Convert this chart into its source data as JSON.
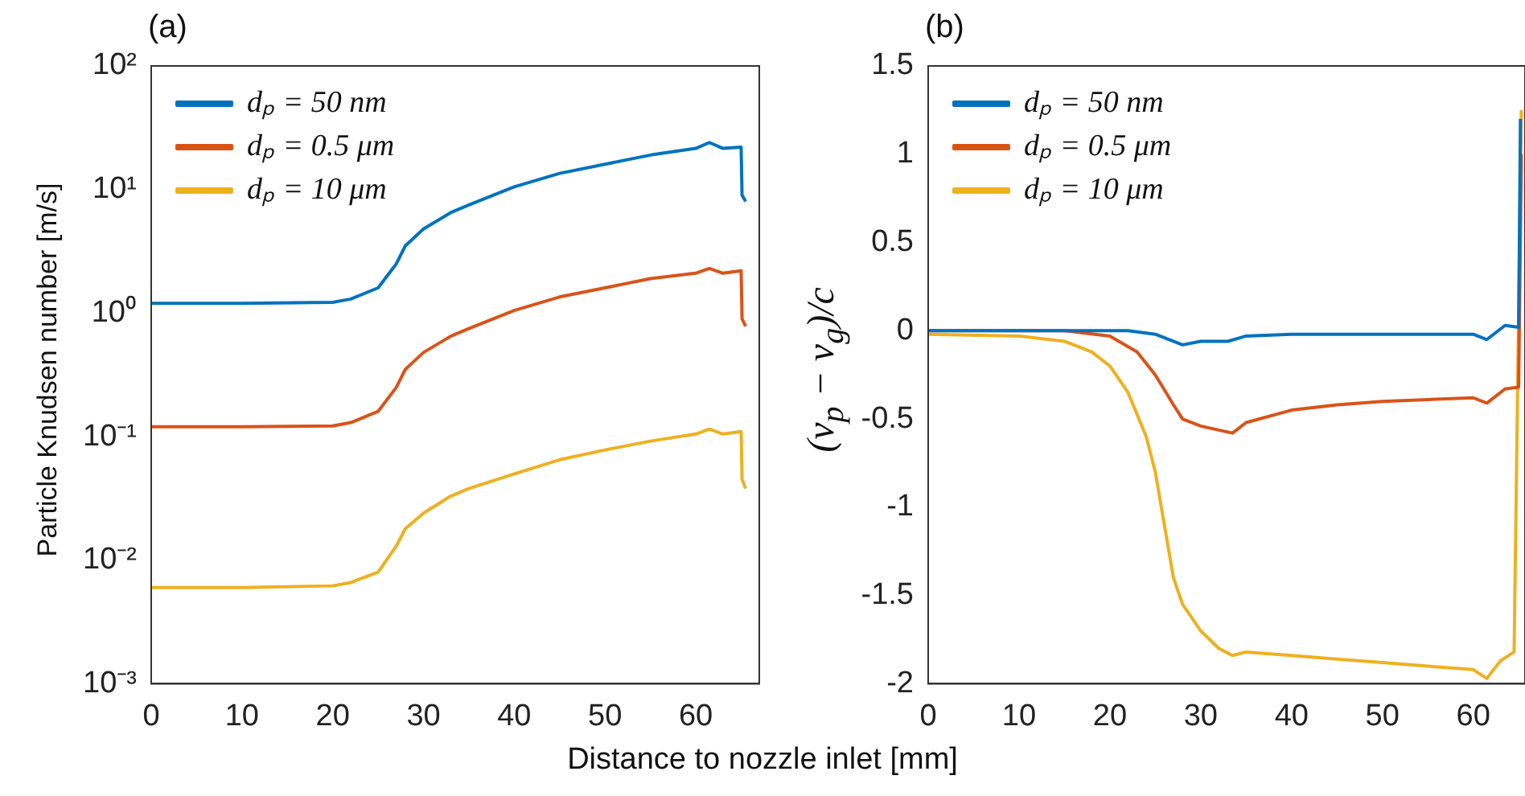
{
  "chart_data": [
    {
      "type": "line",
      "title": "(a)",
      "xlabel": "Distance to nozzle inlet [mm]",
      "ylabel": "Particle Knudsen number [m/s]",
      "log": "y",
      "legend": "top left",
      "grid": false,
      "xlim": [
        0,
        67
      ],
      "xticks": [
        0,
        10,
        20,
        30,
        40,
        50,
        60
      ],
      "ylim": [
        0.001,
        100
      ],
      "yticks": [
        {
          "value": 0.001,
          "label": "10⁻³"
        },
        {
          "value": 0.01,
          "label": "10⁻²"
        },
        {
          "value": 0.1,
          "label": "10⁻¹"
        },
        {
          "value": 1,
          "label": "10⁰"
        },
        {
          "value": 10,
          "label": "10¹"
        },
        {
          "value": 100,
          "label": "10²"
        }
      ],
      "x": [
        0,
        10,
        20,
        22,
        25,
        27,
        28,
        30,
        33,
        35,
        40,
        45,
        50,
        55,
        60,
        61.5,
        63,
        65,
        65.1,
        65.5
      ],
      "series": [
        {
          "name": "dₚ = 50 nm",
          "color": "#0072bd",
          "values": [
            1.2,
            1.2,
            1.22,
            1.3,
            1.6,
            2.5,
            3.5,
            4.8,
            6.5,
            7.5,
            10.5,
            13.5,
            16,
            19,
            21.5,
            24,
            21.5,
            22,
            9,
            8
          ]
        },
        {
          "name": "dₚ = 0.5 μm",
          "color": "#d95319",
          "values": [
            0.12,
            0.12,
            0.122,
            0.13,
            0.16,
            0.25,
            0.35,
            0.48,
            0.65,
            0.75,
            1.05,
            1.35,
            1.6,
            1.9,
            2.1,
            2.3,
            2.1,
            2.2,
            0.9,
            0.78
          ]
        },
        {
          "name": "dₚ = 10 μm",
          "color": "#edb120",
          "values": [
            0.006,
            0.006,
            0.0062,
            0.0066,
            0.008,
            0.013,
            0.018,
            0.024,
            0.033,
            0.038,
            0.05,
            0.065,
            0.078,
            0.092,
            0.105,
            0.115,
            0.105,
            0.11,
            0.045,
            0.038
          ]
        }
      ]
    },
    {
      "type": "line",
      "title": "(b)",
      "ylabel": "(v$_{p}$ − v$_{g}$)/c",
      "legend": "top left",
      "grid": false,
      "xlim": [
        0,
        65.7
      ],
      "xticks": [
        0,
        10,
        20,
        30,
        40,
        50,
        60
      ],
      "ylim": [
        -2,
        1.5
      ],
      "yticks": [
        -2,
        -1.5,
        -1,
        -0.5,
        0,
        0.5,
        1,
        1.5
      ],
      "series": [
        {
          "name": "dₚ = 50 nm",
          "color": "#0072bd",
          "x": [
            0,
            22,
            25,
            28,
            30,
            33,
            35,
            40,
            50,
            60,
            61.5,
            63.5,
            65,
            65.2
          ],
          "values": [
            0,
            0,
            -0.02,
            -0.08,
            -0.06,
            -0.06,
            -0.03,
            -0.02,
            -0.02,
            -0.02,
            -0.05,
            0.03,
            0.02,
            1.2
          ]
        },
        {
          "name": "dₚ = 0.5 μm",
          "color": "#d95319",
          "x": [
            0,
            15,
            20,
            23,
            25,
            27,
            28,
            30,
            33.5,
            35,
            40,
            45,
            50,
            55,
            60,
            61.5,
            63.5,
            65,
            65.3
          ],
          "values": [
            0,
            0,
            -0.03,
            -0.12,
            -0.25,
            -0.42,
            -0.5,
            -0.54,
            -0.58,
            -0.52,
            -0.45,
            -0.42,
            -0.4,
            -0.39,
            -0.38,
            -0.41,
            -0.33,
            -0.32,
            1.0
          ]
        },
        {
          "name": "dₚ = 10 μm",
          "color": "#edb120",
          "x": [
            0,
            10,
            15,
            18,
            20,
            22,
            24,
            25,
            26,
            27,
            28,
            30,
            32,
            33.5,
            35,
            40,
            45,
            50,
            55,
            60,
            61.5,
            63,
            64.5,
            65.3
          ],
          "values": [
            -0.02,
            -0.03,
            -0.06,
            -0.12,
            -0.2,
            -0.35,
            -0.6,
            -0.8,
            -1.1,
            -1.4,
            -1.55,
            -1.7,
            -1.8,
            -1.84,
            -1.82,
            -1.84,
            -1.86,
            -1.88,
            -1.9,
            -1.92,
            -1.97,
            -1.87,
            -1.82,
            1.25
          ]
        }
      ]
    }
  ]
}
